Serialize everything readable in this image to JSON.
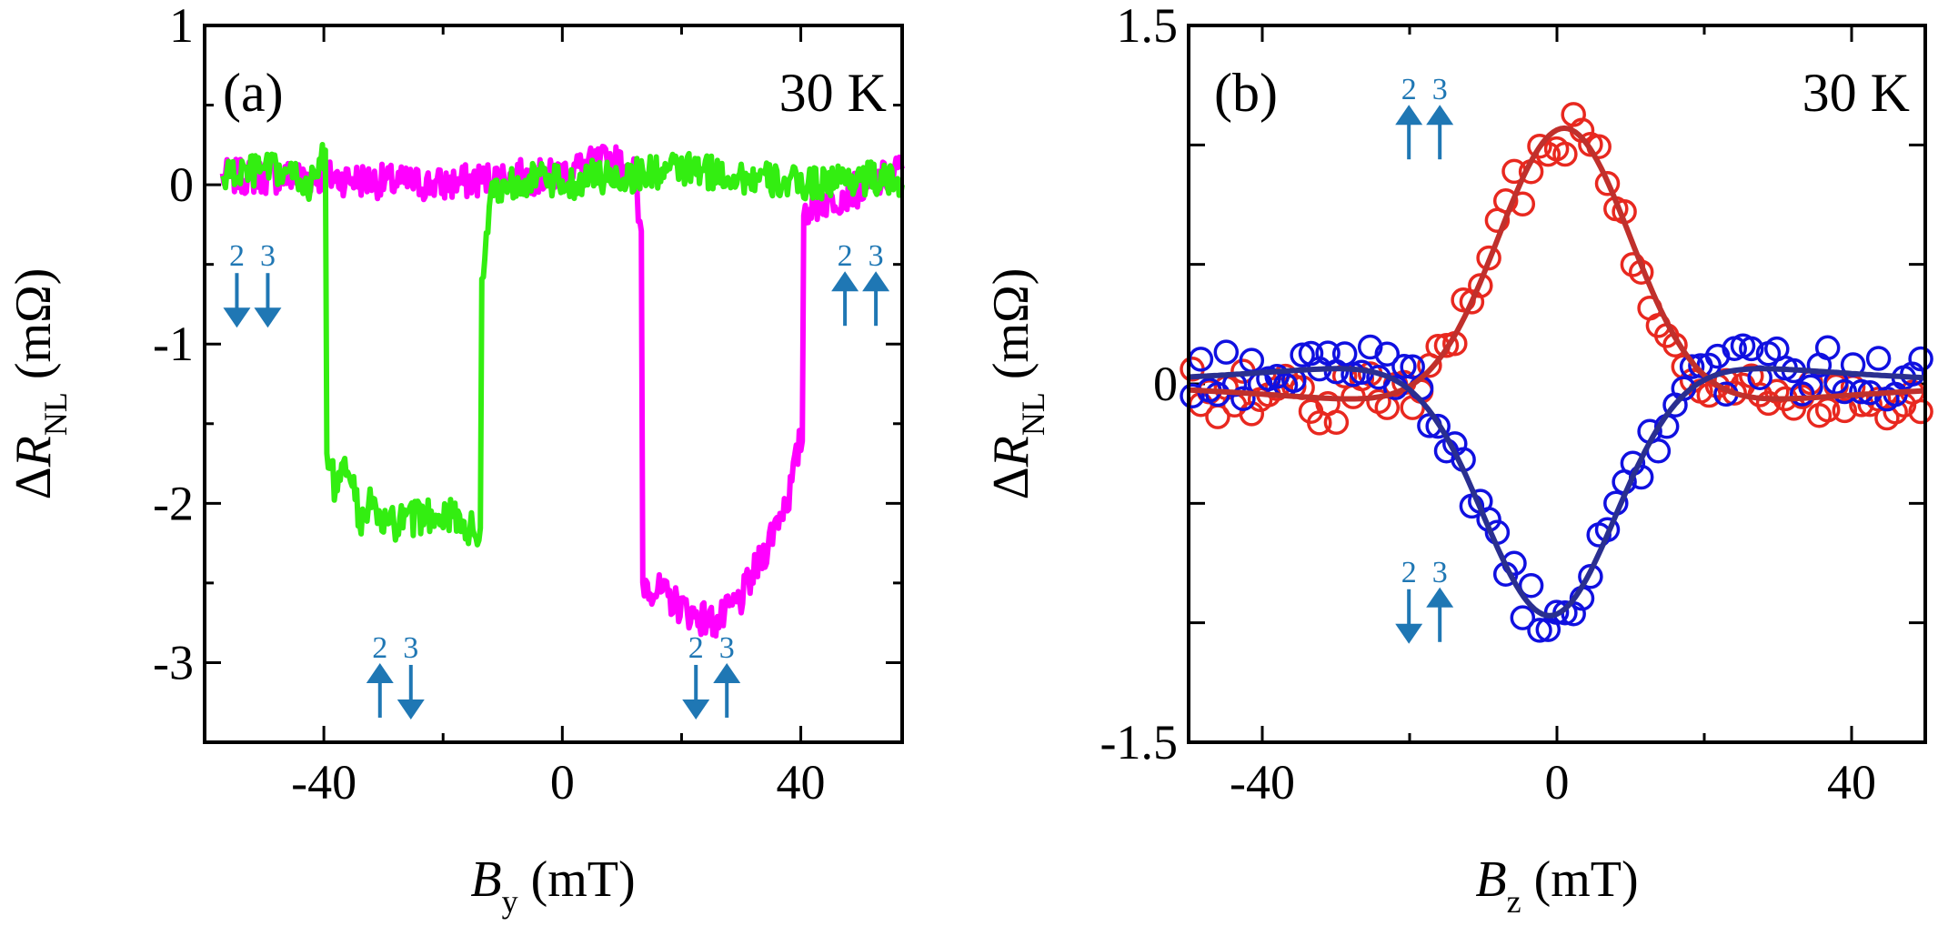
{
  "chart_data": [
    {
      "type": "line",
      "panel_label": "(a)",
      "temperature": "30 K",
      "xlabel": {
        "var": "B",
        "sub": "y",
        "unit": " (mT)"
      },
      "ylabel": {
        "delta": "Δ",
        "var": "R",
        "sub": "NL",
        "unit": " (mΩ)"
      },
      "xlim": [
        -60,
        57
      ],
      "ylim": [
        -3.5,
        1
      ],
      "xticks": [
        -40,
        0,
        40
      ],
      "xtick_labels": [
        "-40",
        "0",
        "40"
      ],
      "yticks": [
        1,
        0,
        -1,
        -2,
        -3
      ],
      "ytick_labels": [
        "1",
        "0",
        "-1",
        "-2",
        "-3"
      ],
      "series": [
        {
          "name": "magenta sweep",
          "color": "#ff00ff",
          "x": [
            -57,
            -40,
            -30,
            -20,
            -10,
            -2,
            2,
            8,
            12,
            13,
            14,
            18,
            22,
            26,
            30,
            34,
            36,
            38,
            40,
            41,
            44,
            48,
            52,
            57
          ],
          "y": [
            0.05,
            0.05,
            0.02,
            0.0,
            0.05,
            0.05,
            0.1,
            0.15,
            0.1,
            -0.3,
            -2.5,
            -2.6,
            -2.7,
            -2.75,
            -2.6,
            -2.3,
            -2.1,
            -1.95,
            -1.6,
            -0.15,
            -0.1,
            -0.05,
            0.0,
            0.1
          ]
        },
        {
          "name": "green sweep",
          "color": "#33ee11",
          "x": [
            -57,
            -50,
            -45,
            -42,
            -40,
            -39,
            -38,
            -36,
            -34,
            -32,
            -30,
            -25,
            -20,
            -16,
            -14,
            -13,
            -12,
            -10,
            -5,
            0,
            5,
            10,
            20,
            30,
            40,
            50,
            57
          ],
          "y": [
            0.05,
            0.1,
            0.05,
            0.0,
            0.2,
            -1.7,
            -1.95,
            -1.75,
            -2.1,
            -2.0,
            -2.15,
            -2.1,
            -2.05,
            -2.15,
            -2.2,
            -0.5,
            -0.05,
            0.0,
            0.05,
            0.0,
            0.05,
            0.05,
            0.1,
            0.05,
            0.0,
            0.05,
            0.0
          ]
        }
      ],
      "arrows": [
        {
          "x": -52,
          "y": -0.72,
          "nums": [
            "2",
            "3"
          ],
          "dirs": [
            "down",
            "down"
          ]
        },
        {
          "x": 50,
          "y": -0.72,
          "nums": [
            "2",
            "3"
          ],
          "dirs": [
            "up",
            "up"
          ]
        },
        {
          "x": -28,
          "y": -3.18,
          "nums": [
            "2",
            "3"
          ],
          "dirs": [
            "up",
            "down"
          ]
        },
        {
          "x": 25,
          "y": -3.18,
          "nums": [
            "2",
            "3"
          ],
          "dirs": [
            "down",
            "up"
          ]
        }
      ]
    },
    {
      "type": "scatter",
      "panel_label": "(b)",
      "temperature": "30 K",
      "xlabel": {
        "var": "B",
        "sub": "z",
        "unit": " (mT)"
      },
      "ylabel": {
        "delta": "Δ",
        "var": "R",
        "sub": "NL",
        "unit": " (mΩ)"
      },
      "xlim": [
        -50,
        50
      ],
      "ylim": [
        -1.5,
        1.5
      ],
      "xticks": [
        -40,
        0,
        40
      ],
      "xtick_labels": [
        "-40",
        "0",
        "40"
      ],
      "yticks": [
        1.5,
        0,
        -1.5
      ],
      "ytick_labels": [
        "1.5",
        "0",
        "-1.5"
      ],
      "minor_yticks": [
        1.5,
        1.0,
        0.5,
        0,
        -0.5,
        -1.0,
        -1.5
      ],
      "series": [
        {
          "name": "parallel data",
          "color": "#e8281f",
          "fit_color": "#c0302c",
          "amp": 1.07,
          "w": 9,
          "b": 0.07,
          "xc": 1,
          "sign": 1
        },
        {
          "name": "antiparallel data",
          "color": "#1010e0",
          "fit_color": "#2a2f90",
          "amp": 0.97,
          "w": 9,
          "b": 0.07,
          "xc": -1,
          "sign": -1
        }
      ],
      "arrows": [
        {
          "x": -18,
          "y": 1.05,
          "nums": [
            "2",
            "3"
          ],
          "dirs": [
            "up",
            "up"
          ]
        },
        {
          "x": -18,
          "y": -0.97,
          "nums": [
            "2",
            "3"
          ],
          "dirs": [
            "down",
            "up"
          ]
        }
      ]
    }
  ]
}
